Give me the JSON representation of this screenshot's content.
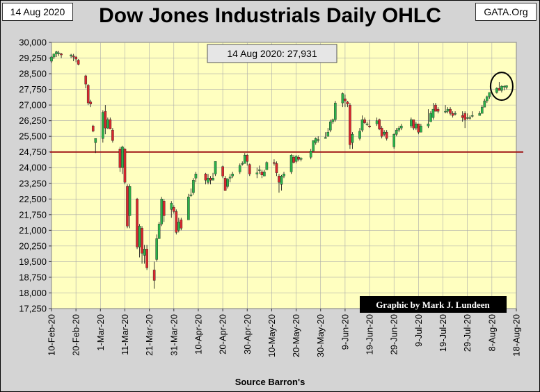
{
  "header": {
    "date_label": "14 Aug 2020",
    "title": "Dow Jones Industrials Daily OHLC",
    "brand": "GATA.Org"
  },
  "footer": {
    "source": "Source Barron's"
  },
  "colors": {
    "background": "#d4d4d4",
    "plot_bg": "#ffffc0",
    "up_candle": "#2ab34a",
    "down_candle": "#d9272e",
    "reference_line": "#a01818",
    "credit_bg": "#000000",
    "credit_text": "#ffffff"
  },
  "chart_data": {
    "type": "candlestick",
    "title": "Dow Jones Industrials Daily OHLC",
    "ylim": [
      17250,
      30000
    ],
    "yticks": [
      17250,
      18000,
      18750,
      19500,
      20250,
      21000,
      21750,
      22500,
      23250,
      24000,
      24750,
      25500,
      26250,
      27000,
      27750,
      28500,
      29250,
      30000
    ],
    "ytick_labels": [
      "17,250",
      "18,000",
      "18,750",
      "19,500",
      "20,250",
      "21,000",
      "21,750",
      "22,500",
      "23,250",
      "24,000",
      "24,750",
      "25,500",
      "26,250",
      "27,000",
      "27,750",
      "28,500",
      "29,250",
      "30,000"
    ],
    "xlim": [
      "2020-02-10",
      "2020-08-18"
    ],
    "xticks": [
      "2020-02-10",
      "2020-02-20",
      "2020-03-01",
      "2020-03-11",
      "2020-03-21",
      "2020-03-31",
      "2020-04-10",
      "2020-04-20",
      "2020-04-30",
      "2020-05-10",
      "2020-05-20",
      "2020-05-30",
      "2020-06-09",
      "2020-06-19",
      "2020-06-29",
      "2020-07-09",
      "2020-07-19",
      "2020-07-29",
      "2020-08-08",
      "2020-08-18"
    ],
    "xtick_labels": [
      "10-Feb-20",
      "20-Feb-20",
      "1-Mar-20",
      "11-Mar-20",
      "21-Mar-20",
      "31-Mar-20",
      "10-Apr-20",
      "20-Apr-20",
      "30-Apr-20",
      "10-May-20",
      "20-May-20",
      "30-May-20",
      "9-Jun-20",
      "19-Jun-20",
      "29-Jun-20",
      "9-Jul-20",
      "19-Jul-20",
      "29-Jul-20",
      "8-Aug-20",
      "18-Aug-20"
    ],
    "grid": true,
    "reference_line": 24750,
    "annotation": "14 Aug 2020: 27,931",
    "highlight": {
      "from": "2020-08-10",
      "to": "2020-08-14"
    },
    "credit": "Graphic by Mark J. Lundeen",
    "dates": [
      "2020-02-10",
      "2020-02-11",
      "2020-02-12",
      "2020-02-13",
      "2020-02-14",
      "2020-02-18",
      "2020-02-19",
      "2020-02-20",
      "2020-02-21",
      "2020-02-24",
      "2020-02-25",
      "2020-02-26",
      "2020-02-27",
      "2020-02-28",
      "2020-03-02",
      "2020-03-03",
      "2020-03-04",
      "2020-03-05",
      "2020-03-06",
      "2020-03-09",
      "2020-03-10",
      "2020-03-11",
      "2020-03-12",
      "2020-03-13",
      "2020-03-16",
      "2020-03-17",
      "2020-03-18",
      "2020-03-19",
      "2020-03-20",
      "2020-03-23",
      "2020-03-24",
      "2020-03-25",
      "2020-03-26",
      "2020-03-27",
      "2020-03-30",
      "2020-03-31",
      "2020-04-01",
      "2020-04-02",
      "2020-04-03",
      "2020-04-06",
      "2020-04-07",
      "2020-04-08",
      "2020-04-09",
      "2020-04-13",
      "2020-04-14",
      "2020-04-15",
      "2020-04-16",
      "2020-04-17",
      "2020-04-20",
      "2020-04-21",
      "2020-04-22",
      "2020-04-23",
      "2020-04-24",
      "2020-04-27",
      "2020-04-28",
      "2020-04-29",
      "2020-04-30",
      "2020-05-01",
      "2020-05-04",
      "2020-05-05",
      "2020-05-06",
      "2020-05-07",
      "2020-05-08",
      "2020-05-11",
      "2020-05-12",
      "2020-05-13",
      "2020-05-14",
      "2020-05-15",
      "2020-05-18",
      "2020-05-19",
      "2020-05-20",
      "2020-05-21",
      "2020-05-22",
      "2020-05-26",
      "2020-05-27",
      "2020-05-28",
      "2020-05-29",
      "2020-06-01",
      "2020-06-02",
      "2020-06-03",
      "2020-06-04",
      "2020-06-05",
      "2020-06-08",
      "2020-06-09",
      "2020-06-10",
      "2020-06-11",
      "2020-06-12",
      "2020-06-15",
      "2020-06-16",
      "2020-06-17",
      "2020-06-18",
      "2020-06-19",
      "2020-06-22",
      "2020-06-23",
      "2020-06-24",
      "2020-06-25",
      "2020-06-26",
      "2020-06-29",
      "2020-06-30",
      "2020-07-01",
      "2020-07-02",
      "2020-07-06",
      "2020-07-07",
      "2020-07-08",
      "2020-07-09",
      "2020-07-10",
      "2020-07-13",
      "2020-07-14",
      "2020-07-15",
      "2020-07-16",
      "2020-07-17",
      "2020-07-20",
      "2020-07-21",
      "2020-07-22",
      "2020-07-23",
      "2020-07-24",
      "2020-07-27",
      "2020-07-28",
      "2020-07-29",
      "2020-07-30",
      "2020-07-31",
      "2020-08-03",
      "2020-08-04",
      "2020-08-05",
      "2020-08-06",
      "2020-08-07",
      "2020-08-10",
      "2020-08-11",
      "2020-08-12",
      "2020-08-13",
      "2020-08-14"
    ],
    "open": [
      29100,
      29300,
      29450,
      29500,
      29450,
      29350,
      29350,
      29300,
      29150,
      28400,
      27950,
      27150,
      26000,
      25200,
      25400,
      26700,
      25900,
      26300,
      25800,
      24900,
      24000,
      24900,
      23100,
      21700,
      22500,
      20200,
      21100,
      19800,
      20100,
      19100,
      19600,
      20600,
      21300,
      22400,
      22000,
      22100,
      21900,
      21000,
      21500,
      21500,
      22700,
      22800,
      23500,
      23700,
      23300,
      23500,
      23400,
      23700,
      24050,
      23500,
      23100,
      23500,
      23600,
      23800,
      24200,
      24200,
      24600,
      24150,
      23700,
      23900,
      23800,
      23600,
      23900,
      24250,
      24200,
      23600,
      23200,
      23600,
      23800,
      24500,
      24300,
      24500,
      24400,
      24500,
      24800,
      25200,
      25300,
      25400,
      25500,
      25800,
      26200,
      26300,
      27100,
      27300,
      27150,
      27000,
      25200,
      25400,
      25800,
      26300,
      26100,
      26000,
      26100,
      26300,
      25900,
      25600,
      25700,
      25000,
      25600,
      25800,
      25900,
      26000,
      26300,
      25900,
      26100,
      25700,
      26000,
      26200,
      26400,
      27000,
      26800,
      26700,
      26700,
      26800,
      26600,
      26600,
      26500,
      26600,
      26400,
      26400,
      26500,
      26500,
      26600,
      26900,
      27200,
      27400,
      27600,
      27800,
      27700,
      27900,
      27850
    ],
    "high": [
      29350,
      29450,
      29600,
      29600,
      29500,
      29450,
      29450,
      29350,
      29200,
      28450,
      28000,
      27250,
      26050,
      25400,
      26750,
      27000,
      26400,
      26400,
      25900,
      25000,
      25050,
      24950,
      23200,
      23200,
      22550,
      21300,
      21200,
      20300,
      20300,
      19500,
      20800,
      21400,
      22600,
      22500,
      22400,
      22200,
      22000,
      21600,
      21600,
      22750,
      23000,
      23500,
      23800,
      23750,
      23700,
      23600,
      23750,
      24300,
      24100,
      23600,
      23500,
      23700,
      23800,
      24200,
      24300,
      24700,
      24650,
      24200,
      24000,
      24100,
      23900,
      23900,
      24300,
      24400,
      24300,
      23700,
      23650,
      23800,
      24650,
      24600,
      24600,
      24600,
      24500,
      24900,
      25300,
      25450,
      25500,
      25700,
      25900,
      26300,
      26350,
      27200,
      27600,
      27500,
      27200,
      27100,
      25700,
      25900,
      26500,
      26400,
      26200,
      26300,
      26400,
      26350,
      26000,
      25800,
      25800,
      25650,
      25900,
      26000,
      26100,
      26400,
      26300,
      26200,
      26100,
      26100,
      26800,
      26700,
      27100,
      27100,
      26900,
      27000,
      26900,
      26900,
      26700,
      26700,
      26700,
      26700,
      26600,
      26500,
      26700,
      26700,
      27000,
      27300,
      27450,
      27600,
      27850,
      28100,
      27950,
      27950,
      27950
    ],
    "low": [
      29000,
      29200,
      29300,
      29350,
      29250,
      29250,
      29100,
      29050,
      28900,
      27800,
      27000,
      26900,
      25700,
      24700,
      25200,
      25600,
      25850,
      25900,
      25200,
      23800,
      23700,
      23200,
      21100,
      21100,
      20100,
      19700,
      19400,
      19400,
      19100,
      18200,
      19500,
      20600,
      21200,
      21400,
      21600,
      21800,
      20800,
      20900,
      21000,
      21500,
      22600,
      22700,
      23300,
      23200,
      23200,
      23200,
      23400,
      23600,
      23500,
      22900,
      23000,
      23300,
      23500,
      23700,
      24100,
      24200,
      24100,
      23600,
      23500,
      23700,
      23500,
      23600,
      23900,
      24100,
      23600,
      22800,
      22900,
      23500,
      23700,
      24200,
      24200,
      24300,
      24300,
      24400,
      24800,
      25100,
      25200,
      25400,
      25500,
      25700,
      26100,
      26200,
      26900,
      26900,
      26900,
      24900,
      24900,
      25300,
      25700,
      26100,
      26000,
      25900,
      26000,
      25800,
      25400,
      25500,
      25300,
      24900,
      25500,
      25700,
      25800,
      25900,
      25800,
      25800,
      25600,
      25700,
      25900,
      26200,
      26300,
      26700,
      26600,
      26600,
      26600,
      26500,
      26400,
      26500,
      26200,
      25900,
      26300,
      26300,
      26400,
      26500,
      26600,
      26900,
      27100,
      27300,
      27550,
      27700,
      27600,
      27700,
      27750
    ],
    "close": [
      29300,
      29450,
      29550,
      29500,
      29400,
      29400,
      29300,
      29200,
      28950,
      28000,
      27100,
      27050,
      25750,
      25400,
      26650,
      25900,
      26300,
      25850,
      25300,
      24000,
      25000,
      23300,
      21200,
      23100,
      20200,
      21200,
      19900,
      20100,
      19200,
      18600,
      20600,
      21300,
      22500,
      21700,
      22300,
      21900,
      20900,
      21400,
      21100,
      22600,
      22700,
      23400,
      23700,
      23400,
      23500,
      23400,
      23500,
      24300,
      23600,
      22900,
      23450,
      23550,
      23700,
      24100,
      24200,
      24600,
      24300,
      23700,
      23750,
      23900,
      23650,
      23800,
      24250,
      24200,
      23750,
      23300,
      23600,
      23700,
      24600,
      24250,
      24550,
      24400,
      24450,
      24800,
      25300,
      25400,
      25350,
      25450,
      25700,
      26200,
      26300,
      27100,
      27550,
      27200,
      27050,
      25100,
      25600,
      25750,
      26300,
      26150,
      26100,
      25950,
      26250,
      25850,
      25500,
      25700,
      25400,
      25600,
      25800,
      25900,
      26000,
      26300,
      25900,
      26100,
      25700,
      26000,
      26100,
      26600,
      26800,
      26700,
      26700,
      26700,
      26800,
      26600,
      26500,
      26600,
      26400,
      26300,
      26400,
      26400,
      26500,
      26600,
      26900,
      27200,
      27400,
      27600,
      27800,
      27700,
      27900,
      27900,
      27931
    ]
  }
}
